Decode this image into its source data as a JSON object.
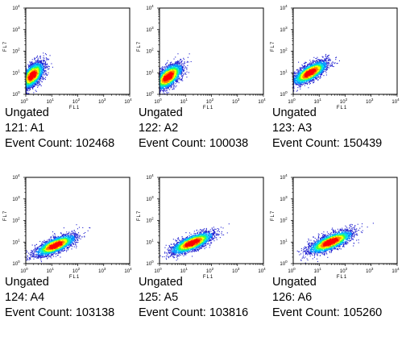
{
  "chart_data": [
    {
      "type": "scatter",
      "title": "Ungated",
      "sample": "121: A1",
      "event_count_label": "Event Count:",
      "event_count": "102468",
      "xlabel": "FL1",
      "ylabel": "FL7",
      "xscale": "log",
      "yscale": "log",
      "xlim": [
        1,
        10000
      ],
      "ylim": [
        1,
        10000
      ],
      "x_ticks": [
        {
          "base": "10",
          "exp": "0"
        },
        {
          "base": "10",
          "exp": "1"
        },
        {
          "base": "10",
          "exp": "2"
        },
        {
          "base": "10",
          "exp": "3"
        },
        {
          "base": "10",
          "exp": "4"
        }
      ],
      "y_ticks": [
        {
          "base": "10",
          "exp": "0"
        },
        {
          "base": "10",
          "exp": "1"
        },
        {
          "base": "10",
          "exp": "2"
        },
        {
          "base": "10",
          "exp": "3"
        },
        {
          "base": "10",
          "exp": "4"
        }
      ],
      "density_center": {
        "x": 1.8,
        "y": 7.5
      },
      "density_spread": {
        "x": 0.22,
        "y": 0.3
      },
      "correlation": 0.55
    },
    {
      "type": "scatter",
      "title": "Ungated",
      "sample": "122: A2",
      "event_count_label": "Event Count:",
      "event_count": "100038",
      "xlabel": "FL1",
      "ylabel": "FL7",
      "xscale": "log",
      "yscale": "log",
      "xlim": [
        1,
        10000
      ],
      "ylim": [
        1,
        10000
      ],
      "x_ticks": [
        {
          "base": "10",
          "exp": "0"
        },
        {
          "base": "10",
          "exp": "1"
        },
        {
          "base": "10",
          "exp": "2"
        },
        {
          "base": "10",
          "exp": "3"
        },
        {
          "base": "10",
          "exp": "4"
        }
      ],
      "y_ticks": [
        {
          "base": "10",
          "exp": "0"
        },
        {
          "base": "10",
          "exp": "1"
        },
        {
          "base": "10",
          "exp": "2"
        },
        {
          "base": "10",
          "exp": "3"
        },
        {
          "base": "10",
          "exp": "4"
        }
      ],
      "density_center": {
        "x": 2.2,
        "y": 6.5
      },
      "density_spread": {
        "x": 0.27,
        "y": 0.3
      },
      "correlation": 0.6
    },
    {
      "type": "scatter",
      "title": "Ungated",
      "sample": "123: A3",
      "event_count_label": "Event Count:",
      "event_count": "150439",
      "xlabel": "FL1",
      "ylabel": "FL7",
      "xscale": "log",
      "yscale": "log",
      "xlim": [
        1,
        10000
      ],
      "ylim": [
        1,
        10000
      ],
      "x_ticks": [
        {
          "base": "10",
          "exp": "0"
        },
        {
          "base": "10",
          "exp": "1"
        },
        {
          "base": "10",
          "exp": "2"
        },
        {
          "base": "10",
          "exp": "3"
        },
        {
          "base": "10",
          "exp": "4"
        }
      ],
      "y_ticks": [
        {
          "base": "10",
          "exp": "0"
        },
        {
          "base": "10",
          "exp": "1"
        },
        {
          "base": "10",
          "exp": "2"
        },
        {
          "base": "10",
          "exp": "3"
        },
        {
          "base": "10",
          "exp": "4"
        }
      ],
      "density_center": {
        "x": 4.5,
        "y": 10
      },
      "density_spread": {
        "x": 0.33,
        "y": 0.27
      },
      "correlation": 0.7
    },
    {
      "type": "scatter",
      "title": "Ungated",
      "sample": "124: A4",
      "event_count_label": "Event Count:",
      "event_count": "103138",
      "xlabel": "FL1",
      "ylabel": "FL7",
      "xscale": "log",
      "yscale": "log",
      "xlim": [
        1,
        10000
      ],
      "ylim": [
        1,
        10000
      ],
      "x_ticks": [
        {
          "base": "10",
          "exp": "0"
        },
        {
          "base": "10",
          "exp": "1"
        },
        {
          "base": "10",
          "exp": "2"
        },
        {
          "base": "10",
          "exp": "3"
        },
        {
          "base": "10",
          "exp": "4"
        }
      ],
      "y_ticks": [
        {
          "base": "10",
          "exp": "0"
        },
        {
          "base": "10",
          "exp": "1"
        },
        {
          "base": "10",
          "exp": "2"
        },
        {
          "base": "10",
          "exp": "3"
        },
        {
          "base": "10",
          "exp": "4"
        }
      ],
      "density_center": {
        "x": 14,
        "y": 7
      },
      "density_spread": {
        "x": 0.38,
        "y": 0.24
      },
      "correlation": 0.7
    },
    {
      "type": "scatter",
      "title": "Ungated",
      "sample": "125: A5",
      "event_count_label": "Event Count:",
      "event_count": "103816",
      "xlabel": "FL1",
      "ylabel": "FL7",
      "xscale": "log",
      "yscale": "log",
      "xlim": [
        1,
        10000
      ],
      "ylim": [
        1,
        10000
      ],
      "x_ticks": [
        {
          "base": "10",
          "exp": "0"
        },
        {
          "base": "10",
          "exp": "1"
        },
        {
          "base": "10",
          "exp": "2"
        },
        {
          "base": "10",
          "exp": "3"
        },
        {
          "base": "10",
          "exp": "4"
        }
      ],
      "y_ticks": [
        {
          "base": "10",
          "exp": "0"
        },
        {
          "base": "10",
          "exp": "1"
        },
        {
          "base": "10",
          "exp": "2"
        },
        {
          "base": "10",
          "exp": "3"
        },
        {
          "base": "10",
          "exp": "4"
        }
      ],
      "density_center": {
        "x": 18,
        "y": 9
      },
      "density_spread": {
        "x": 0.4,
        "y": 0.25
      },
      "correlation": 0.72
    },
    {
      "type": "scatter",
      "title": "Ungated",
      "sample": "126: A6",
      "event_count_label": "Event Count:",
      "event_count": "105260",
      "xlabel": "FL1",
      "ylabel": "FL7",
      "xscale": "log",
      "yscale": "log",
      "xlim": [
        1,
        10000
      ],
      "ylim": [
        1,
        10000
      ],
      "x_ticks": [
        {
          "base": "10",
          "exp": "0"
        },
        {
          "base": "10",
          "exp": "1"
        },
        {
          "base": "10",
          "exp": "2"
        },
        {
          "base": "10",
          "exp": "3"
        },
        {
          "base": "10",
          "exp": "4"
        }
      ],
      "y_ticks": [
        {
          "base": "10",
          "exp": "0"
        },
        {
          "base": "10",
          "exp": "1"
        },
        {
          "base": "10",
          "exp": "2"
        },
        {
          "base": "10",
          "exp": "3"
        },
        {
          "base": "10",
          "exp": "4"
        }
      ],
      "density_center": {
        "x": 28,
        "y": 10
      },
      "density_spread": {
        "x": 0.42,
        "y": 0.26
      },
      "correlation": 0.72
    }
  ],
  "colors": {
    "density_scale": [
      "#2020d0",
      "#0090ff",
      "#00e0e0",
      "#40ff40",
      "#ffff00",
      "#ff8000",
      "#ff0000"
    ],
    "axis": "#000000"
  }
}
